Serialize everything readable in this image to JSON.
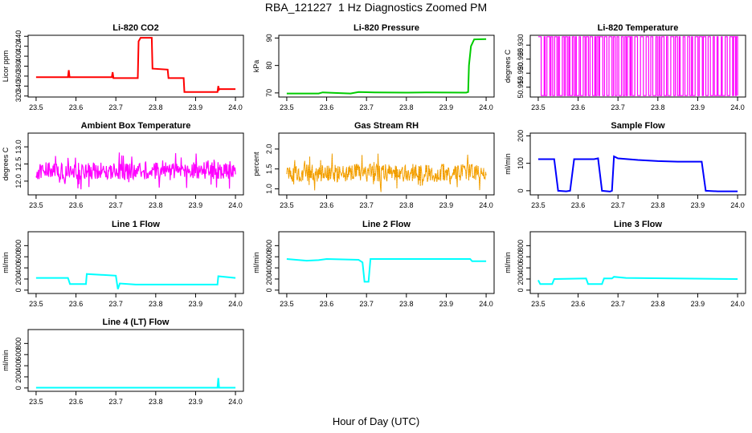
{
  "title": "RBA_121227  1 Hz Diagnostics Zoomed PM",
  "xlabel": "Hour of Day (UTC)",
  "chart_data": [
    {
      "type": "line",
      "title": "Li-820 CO2",
      "xlabel": "",
      "ylabel": "Licor ppm",
      "xlim": [
        23.48,
        24.02
      ],
      "ylim": [
        318,
        442
      ],
      "xticks": [
        23.5,
        23.6,
        23.7,
        23.8,
        23.9,
        24.0
      ],
      "yticks": [
        320,
        340,
        360,
        380,
        400,
        420,
        440
      ],
      "grid": false,
      "color": "#ff0000",
      "series": [
        {
          "points": [
            [
              23.5,
              358
            ],
            [
              23.58,
              358
            ],
            [
              23.582,
              372
            ],
            [
              23.584,
              358
            ],
            [
              23.69,
              358
            ],
            [
              23.692,
              368
            ],
            [
              23.694,
              356
            ],
            [
              23.755,
              356
            ],
            [
              23.757,
              430
            ],
            [
              23.762,
              437
            ],
            [
              23.79,
              437
            ],
            [
              23.792,
              375
            ],
            [
              23.83,
              373
            ],
            [
              23.832,
              356
            ],
            [
              23.87,
              356
            ],
            [
              23.872,
              328
            ],
            [
              23.955,
              328
            ],
            [
              23.957,
              340
            ],
            [
              23.959,
              333
            ],
            [
              23.96,
              334
            ],
            [
              24.0,
              334
            ]
          ]
        }
      ]
    },
    {
      "type": "line",
      "title": "Li-820 Pressure",
      "xlabel": "",
      "ylabel": "kPa",
      "xlim": [
        23.48,
        24.02
      ],
      "ylim": [
        68.5,
        91
      ],
      "xticks": [
        23.5,
        23.6,
        23.7,
        23.8,
        23.9,
        24.0
      ],
      "yticks": [
        70,
        80,
        90
      ],
      "grid": false,
      "color": "#00cc00",
      "series": [
        {
          "points": [
            [
              23.5,
              69.8
            ],
            [
              23.58,
              69.8
            ],
            [
              23.59,
              70.2
            ],
            [
              23.62,
              70.0
            ],
            [
              23.66,
              69.8
            ],
            [
              23.68,
              70.3
            ],
            [
              23.72,
              70.2
            ],
            [
              23.8,
              70.1
            ],
            [
              23.85,
              70.2
            ],
            [
              23.95,
              70.1
            ],
            [
              23.955,
              70.3
            ],
            [
              23.957,
              80
            ],
            [
              23.962,
              87
            ],
            [
              23.97,
              89.5
            ],
            [
              24.0,
              89.6
            ]
          ]
        }
      ]
    },
    {
      "type": "line",
      "title": "Li-820 Temperature",
      "xlabel": "",
      "ylabel": "degrees C",
      "xlim": [
        23.48,
        24.02
      ],
      "ylim": [
        50.9115,
        50.9335
      ],
      "xticks": [
        23.5,
        23.6,
        23.7,
        23.8,
        23.9,
        24.0
      ],
      "yticks": [
        50.915,
        50.92,
        50.925,
        50.93
      ],
      "ytick_labels": [
        "50.915",
        "50.920",
        "50.925",
        "50.930"
      ],
      "grid": false,
      "color": "#ff00ff",
      "series": [
        {
          "pattern": "toggle",
          "high": 50.933,
          "low": 50.912
        }
      ]
    },
    {
      "type": "line",
      "title": "Ambient Box Temperature",
      "xlabel": "",
      "ylabel": "degrees C",
      "xlim": [
        23.48,
        24.02
      ],
      "ylim": [
        11.6,
        13.4
      ],
      "xticks": [
        23.5,
        23.6,
        23.7,
        23.8,
        23.9,
        24.0
      ],
      "yticks": [
        12.0,
        12.5,
        13.0
      ],
      "ytick_labels": [
        "12.0",
        "12.5",
        "13.0"
      ],
      "grid": false,
      "color": "#ff00ff",
      "series": [
        {
          "pattern": "noise",
          "center": 12.3,
          "spread": 0.5
        }
      ]
    },
    {
      "type": "scatter",
      "title": "Gas Stream RH",
      "xlabel": "",
      "ylabel": "percent",
      "xlim": [
        23.48,
        24.02
      ],
      "ylim": [
        0.85,
        2.4
      ],
      "xticks": [
        23.5,
        23.6,
        23.7,
        23.8,
        23.9,
        24.0
      ],
      "yticks": [
        1.0,
        1.5,
        2.0
      ],
      "ytick_labels": [
        "1.0",
        "1.5",
        "2.0"
      ],
      "grid": false,
      "color": "#ffa500",
      "series": [
        {
          "pattern": "noise",
          "center": 1.4,
          "spread": 0.45
        }
      ]
    },
    {
      "type": "line",
      "title": "Sample Flow",
      "xlabel": "",
      "ylabel": "ml/min",
      "xlim": [
        23.48,
        24.02
      ],
      "ylim": [
        -15,
        210
      ],
      "xticks": [
        23.5,
        23.6,
        23.7,
        23.8,
        23.9,
        24.0
      ],
      "yticks": [
        0,
        100,
        200
      ],
      "grid": false,
      "color": "#0000ff",
      "series": [
        {
          "points": [
            [
              23.5,
              115
            ],
            [
              23.54,
              115
            ],
            [
              23.55,
              0
            ],
            [
              23.57,
              -2
            ],
            [
              23.58,
              0
            ],
            [
              23.59,
              115
            ],
            [
              23.64,
              115
            ],
            [
              23.65,
              118
            ],
            [
              23.66,
              0
            ],
            [
              23.68,
              -3
            ],
            [
              23.685,
              0
            ],
            [
              23.69,
              125
            ],
            [
              23.7,
              118
            ],
            [
              23.75,
              112
            ],
            [
              23.8,
              108
            ],
            [
              23.85,
              106
            ],
            [
              23.91,
              106
            ],
            [
              23.92,
              0
            ],
            [
              23.95,
              -2
            ],
            [
              24.0,
              -2
            ]
          ]
        }
      ]
    },
    {
      "type": "line",
      "title": "Line 1 Flow",
      "xlabel": "",
      "ylabel": "ml/min",
      "xlim": [
        23.48,
        24.02
      ],
      "ylim": [
        -60,
        1050
      ],
      "xticks": [
        23.5,
        23.6,
        23.7,
        23.8,
        23.9,
        24.0
      ],
      "yticks": [
        0,
        200,
        400,
        600,
        800
      ],
      "grid": false,
      "color": "#00ffff",
      "series": [
        {
          "points": [
            [
              23.5,
              220
            ],
            [
              23.58,
              220
            ],
            [
              23.585,
              110
            ],
            [
              23.625,
              110
            ],
            [
              23.627,
              290
            ],
            [
              23.7,
              260
            ],
            [
              23.705,
              20
            ],
            [
              23.71,
              120
            ],
            [
              23.75,
              100
            ],
            [
              23.955,
              100
            ],
            [
              23.957,
              250
            ],
            [
              24.0,
              220
            ]
          ]
        }
      ]
    },
    {
      "type": "line",
      "title": "Line 2 Flow",
      "xlabel": "",
      "ylabel": "ml/min",
      "xlim": [
        23.48,
        24.02
      ],
      "ylim": [
        -60,
        1050
      ],
      "xticks": [
        23.5,
        23.6,
        23.7,
        23.8,
        23.9,
        24.0
      ],
      "yticks": [
        0,
        200,
        400,
        600,
        800
      ],
      "grid": false,
      "color": "#00ffff",
      "series": [
        {
          "points": [
            [
              23.5,
              560
            ],
            [
              23.55,
              530
            ],
            [
              23.58,
              540
            ],
            [
              23.6,
              560
            ],
            [
              23.68,
              545
            ],
            [
              23.69,
              500
            ],
            [
              23.695,
              150
            ],
            [
              23.705,
              150
            ],
            [
              23.71,
              560
            ],
            [
              23.96,
              560
            ],
            [
              23.965,
              520
            ],
            [
              24.0,
              520
            ]
          ]
        }
      ]
    },
    {
      "type": "line",
      "title": "Line 3 Flow",
      "xlabel": "",
      "ylabel": "ml/min",
      "xlim": [
        23.48,
        24.02
      ],
      "ylim": [
        -60,
        1050
      ],
      "xticks": [
        23.5,
        23.6,
        23.7,
        23.8,
        23.9,
        24.0
      ],
      "yticks": [
        0,
        200,
        400,
        600,
        800
      ],
      "grid": false,
      "color": "#00ffff",
      "series": [
        {
          "points": [
            [
              23.5,
              180
            ],
            [
              23.505,
              110
            ],
            [
              23.535,
              110
            ],
            [
              23.54,
              200
            ],
            [
              23.62,
              210
            ],
            [
              23.625,
              110
            ],
            [
              23.66,
              110
            ],
            [
              23.665,
              210
            ],
            [
              23.685,
              210
            ],
            [
              23.69,
              240
            ],
            [
              23.72,
              220
            ],
            [
              24.0,
              200
            ]
          ]
        }
      ]
    },
    {
      "type": "line",
      "title": "Line 4 (LT) Flow",
      "xlabel": "",
      "ylabel": "ml/min",
      "xlim": [
        23.48,
        24.02
      ],
      "ylim": [
        -60,
        1050
      ],
      "xticks": [
        23.5,
        23.6,
        23.7,
        23.8,
        23.9,
        24.0
      ],
      "yticks": [
        0,
        200,
        400,
        600,
        800
      ],
      "grid": false,
      "color": "#00ffff",
      "series": [
        {
          "points": [
            [
              23.5,
              5
            ],
            [
              23.955,
              5
            ],
            [
              23.957,
              180
            ],
            [
              23.959,
              5
            ],
            [
              24.0,
              5
            ]
          ]
        }
      ]
    }
  ]
}
